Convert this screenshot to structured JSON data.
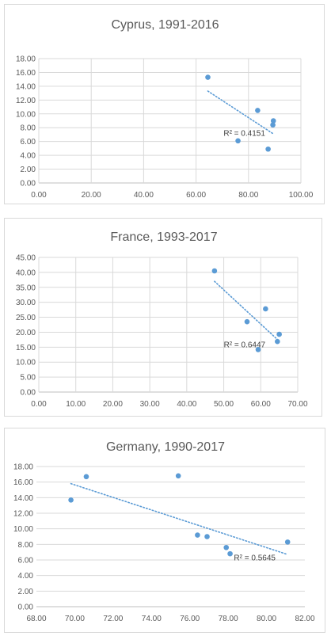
{
  "chart_data": [
    {
      "type": "scatter",
      "title": "Cyprus, 1991-2016",
      "xlim": [
        0,
        100
      ],
      "ylim": [
        0,
        18
      ],
      "x_ticks": [
        "0.00",
        "20.00",
        "40.00",
        "60.00",
        "80.00",
        "100.00"
      ],
      "y_ticks": [
        "0.00",
        "2.00",
        "4.00",
        "6.00",
        "8.00",
        "10.00",
        "12.00",
        "14.00",
        "16.00",
        "18.00"
      ],
      "grid": "vertical and horizontal",
      "legend": "none",
      "marker_color": "#5b9bd5",
      "points": [
        {
          "x": 64.5,
          "y": 15.3
        },
        {
          "x": 83.5,
          "y": 10.5
        },
        {
          "x": 89.5,
          "y": 9.0
        },
        {
          "x": 89.3,
          "y": 8.4
        },
        {
          "x": 76.0,
          "y": 6.1
        },
        {
          "x": 87.5,
          "y": 4.9
        }
      ],
      "trendline": {
        "style": "dotted",
        "from": {
          "x": 64.5,
          "y": 13.3
        },
        "to": {
          "x": 89.5,
          "y": 7.1
        }
      },
      "annotation": "R² = 0.4151",
      "annotation_at": {
        "x": 70.5,
        "y": 7.2
      }
    },
    {
      "type": "scatter",
      "title": "France, 1993-2017",
      "xlim": [
        0,
        70
      ],
      "ylim": [
        0,
        45
      ],
      "x_ticks": [
        "0.00",
        "10.00",
        "20.00",
        "30.00",
        "40.00",
        "50.00",
        "60.00",
        "70.00"
      ],
      "y_ticks": [
        "0.00",
        "5.00",
        "10.00",
        "15.00",
        "20.00",
        "25.00",
        "30.00",
        "35.00",
        "40.00",
        "45.00"
      ],
      "grid": "vertical and horizontal",
      "legend": "none",
      "marker_color": "#5b9bd5",
      "points": [
        {
          "x": 47.5,
          "y": 40.5
        },
        {
          "x": 61.3,
          "y": 27.8
        },
        {
          "x": 56.3,
          "y": 23.5
        },
        {
          "x": 65.0,
          "y": 19.3
        },
        {
          "x": 64.5,
          "y": 16.9
        },
        {
          "x": 59.3,
          "y": 14.2
        }
      ],
      "trendline": {
        "style": "dotted",
        "from": {
          "x": 47.5,
          "y": 37.0
        },
        "to": {
          "x": 65.0,
          "y": 17.0
        }
      },
      "annotation": "R² = 0.6447",
      "annotation_at": {
        "x": 50.0,
        "y": 15.9
      }
    },
    {
      "type": "scatter",
      "title": "Germany, 1990-2017",
      "xlim": [
        68,
        82
      ],
      "ylim": [
        0,
        18
      ],
      "x_ticks": [
        "68.00",
        "70.00",
        "72.00",
        "74.00",
        "76.00",
        "78.00",
        "80.00",
        "82.00"
      ],
      "y_ticks": [
        "0.00",
        "2.00",
        "4.00",
        "6.00",
        "8.00",
        "10.00",
        "12.00",
        "14.00",
        "16.00",
        "18.00"
      ],
      "grid": "horizontal only",
      "legend": "none",
      "marker_color": "#5b9bd5",
      "points": [
        {
          "x": 69.8,
          "y": 13.7
        },
        {
          "x": 70.6,
          "y": 16.7
        },
        {
          "x": 75.4,
          "y": 16.8
        },
        {
          "x": 76.4,
          "y": 9.2
        },
        {
          "x": 76.9,
          "y": 9.0
        },
        {
          "x": 77.9,
          "y": 7.6
        },
        {
          "x": 78.1,
          "y": 6.8
        },
        {
          "x": 81.1,
          "y": 8.3
        }
      ],
      "trendline": {
        "style": "dotted",
        "from": {
          "x": 69.8,
          "y": 15.8
        },
        "to": {
          "x": 81.1,
          "y": 6.7
        }
      },
      "annotation": "R² = 0.5645",
      "annotation_at": {
        "x": 78.3,
        "y": 6.3
      }
    }
  ]
}
